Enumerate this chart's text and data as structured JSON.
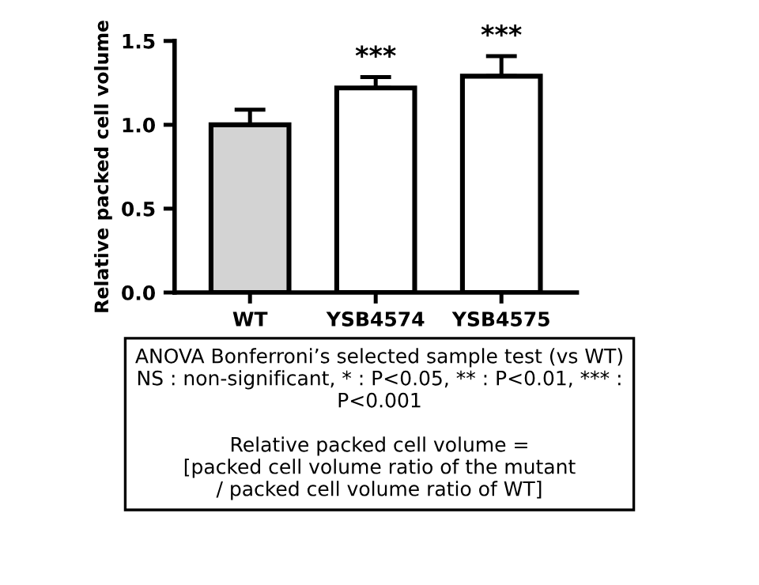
{
  "chart_data": {
    "type": "bar",
    "ylabel": "Relative packed cell volume",
    "categories": [
      "WT",
      "YSB4574",
      "YSB4575"
    ],
    "values": [
      1.0,
      1.22,
      1.29
    ],
    "errors": [
      0.09,
      0.065,
      0.12
    ],
    "colors": [
      "#d3d3d3",
      "#ffffff",
      "#ffffff"
    ],
    "ylim": [
      0,
      1.5
    ],
    "yticks": [
      {
        "value": 0,
        "label": "0.0"
      },
      0.5,
      {
        "value": 1,
        "label": "1.0"
      },
      1.5
    ],
    "grid": false,
    "legend": false,
    "annotations": [
      {
        "text": "***",
        "x": "YSB4574",
        "y": 1.285
      },
      {
        "text": "***",
        "x": "YSB4575",
        "y": 1.41
      },
      "ANOVA Bonferroni’s selected sample test (vs WT)\nNS : non-significant, * : P<0.05, ** : P<0.01, *** :\nP<0.001\n\nRelative packed cell volume =\n[packed cell volume ratio of the mutant\n/ packed cell volume ratio of WT]"
    ]
  }
}
